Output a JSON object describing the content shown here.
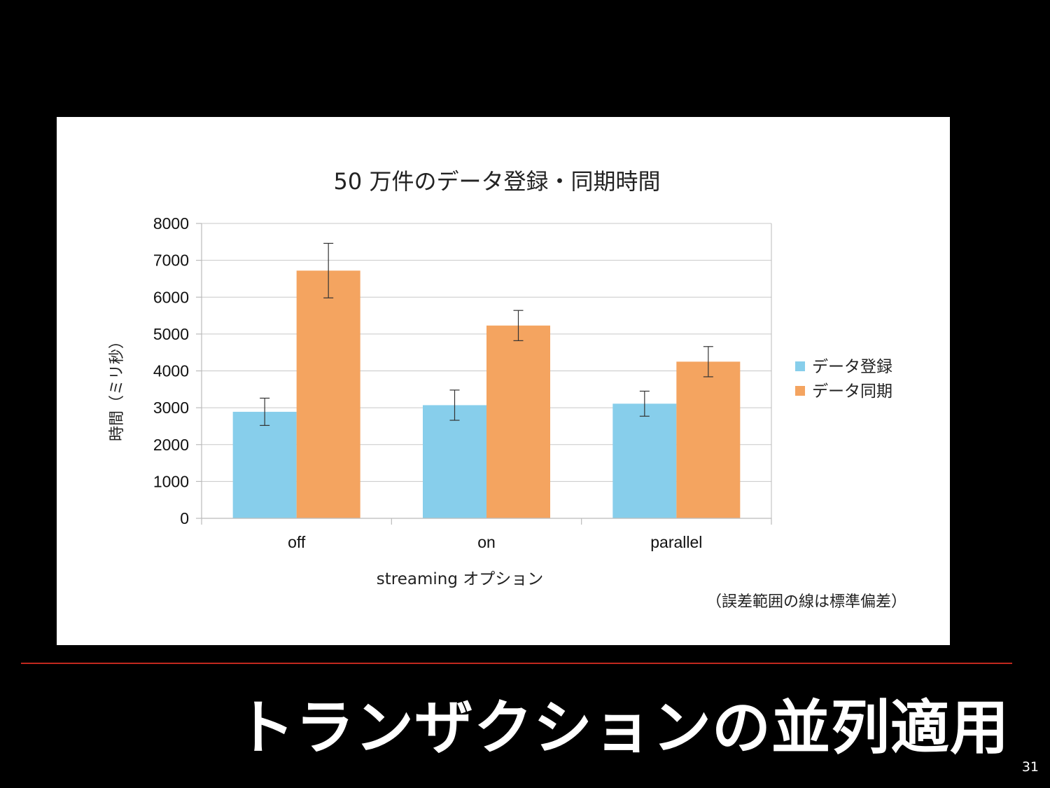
{
  "slide": {
    "title": "トランザクションの並列適用",
    "page_number": "31",
    "colors": {
      "background": "#000000",
      "divider": "#c0281e",
      "title": "#ffffff"
    }
  },
  "chart_data": {
    "type": "bar",
    "title": "50 万件のデータ登録・同期時間",
    "xlabel": "streaming オプション",
    "ylabel": "時間（ミリ秒）",
    "categories": [
      "off",
      "on",
      "parallel"
    ],
    "ylim": [
      0,
      8000
    ],
    "yticks": [
      "0",
      "1000",
      "2000",
      "3000",
      "4000",
      "5000",
      "6000",
      "7000",
      "8000"
    ],
    "grid": true,
    "legend_position": "right",
    "series": [
      {
        "name": "データ登録",
        "color": "#87ceeb",
        "values": [
          2890,
          3070,
          3110
        ],
        "error": [
          370,
          410,
          340
        ]
      },
      {
        "name": "データ同期",
        "color": "#f4a460",
        "values": [
          6720,
          5230,
          4250
        ],
        "error": [
          740,
          410,
          410
        ]
      }
    ],
    "note": "（誤差範囲の線は標準偏差）"
  }
}
